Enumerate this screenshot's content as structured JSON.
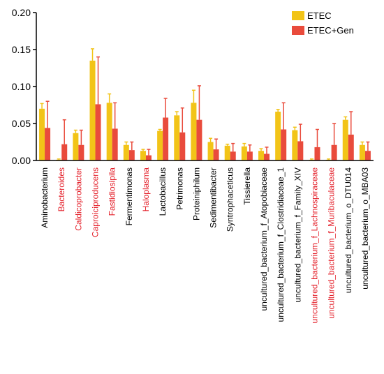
{
  "chart_data": {
    "type": "bar",
    "title": "",
    "xlabel": "",
    "ylabel": "",
    "ylim": [
      0,
      0.2
    ],
    "yticks": [
      "0.00",
      "0.05",
      "0.10",
      "0.15",
      "0.20"
    ],
    "legend_position": "top-right",
    "categories": [
      "Aminobacterium",
      "Bacteroides",
      "Caldicoprobacter",
      "Caproiciproducens",
      "Fastidiosipila",
      "Fermentimonas",
      "Haloplasma",
      "Lactobacillus",
      "Petrimonas",
      "Proteiniphilum",
      "Sedimentibacter",
      "Syntrophaceticus",
      "Tissierella",
      "uncultured_bacterium_f_Atopobiaceae",
      "uncultured_bacterium_f_Clostridiaceae_1",
      "uncultured_bacterium_f_Family_XIV",
      "uncultured_bacterium_f_Lachnospiraceae",
      "uncultured_bacterium_f_Muribaculaceae",
      "uncultured_bacterium_o_DTU014",
      "uncultured_bacterium_o_MBA03"
    ],
    "highlighted": [
      false,
      true,
      true,
      true,
      true,
      false,
      true,
      false,
      false,
      false,
      false,
      false,
      false,
      false,
      false,
      false,
      true,
      true,
      false,
      false
    ],
    "series": [
      {
        "name": "ETEC",
        "color": "#F2C418",
        "values": [
          0.07,
          0.001,
          0.037,
          0.135,
          0.078,
          0.021,
          0.013,
          0.04,
          0.061,
          0.078,
          0.025,
          0.02,
          0.019,
          0.013,
          0.066,
          0.041,
          0.001,
          0.001,
          0.055,
          0.021
        ],
        "errors": [
          0.007,
          0.001,
          0.004,
          0.016,
          0.012,
          0.004,
          0.002,
          0.002,
          0.005,
          0.017,
          0.005,
          0.002,
          0.004,
          0.003,
          0.003,
          0.004,
          0.001,
          0.001,
          0.004,
          0.004
        ]
      },
      {
        "name": "ETEC+Gen",
        "color": "#E94B3C",
        "values": [
          0.044,
          0.022,
          0.021,
          0.076,
          0.043,
          0.014,
          0.007,
          0.058,
          0.038,
          0.055,
          0.015,
          0.012,
          0.012,
          0.009,
          0.042,
          0.026,
          0.018,
          0.021,
          0.035,
          0.013
        ],
        "errors": [
          0.036,
          0.033,
          0.02,
          0.064,
          0.035,
          0.011,
          0.008,
          0.026,
          0.033,
          0.046,
          0.014,
          0.011,
          0.009,
          0.009,
          0.036,
          0.023,
          0.024,
          0.029,
          0.031,
          0.012
        ]
      }
    ]
  }
}
